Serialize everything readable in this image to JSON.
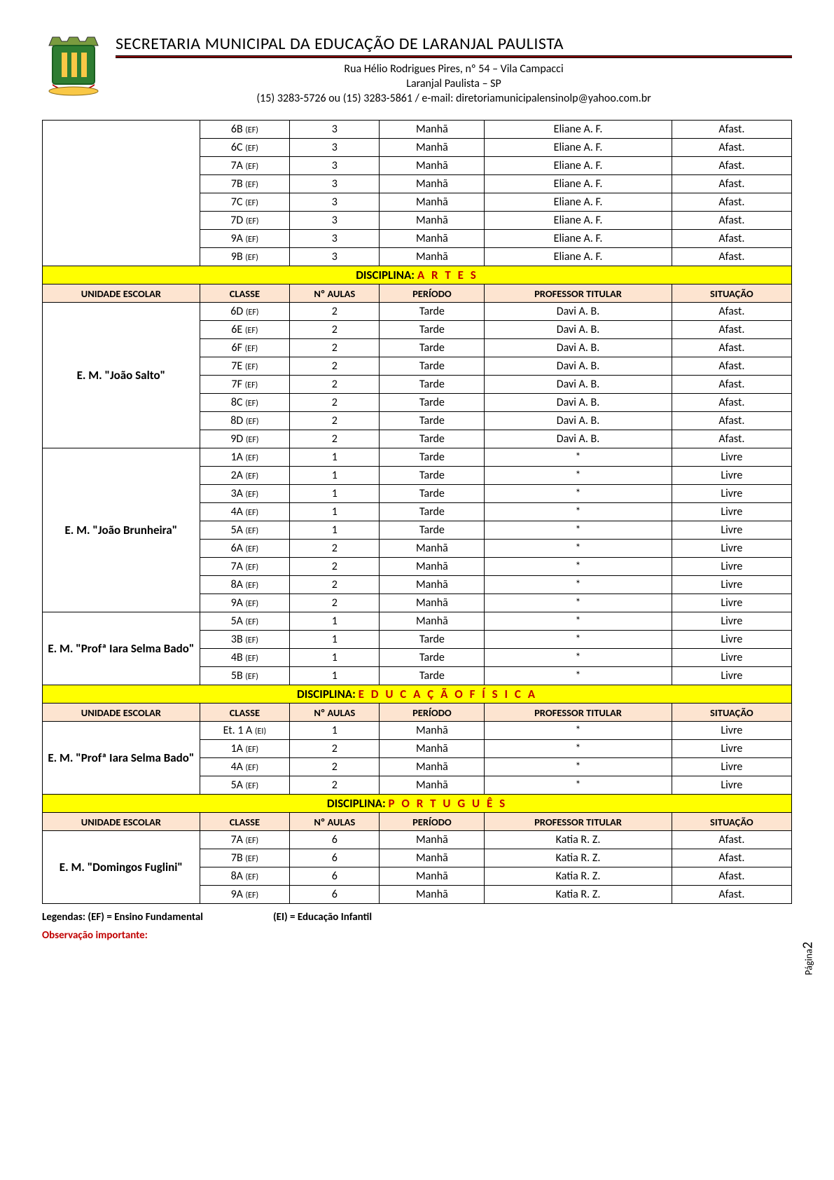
{
  "header": {
    "title": "SECRETARIA MUNICIPAL DA EDUCAÇÃO DE LARANJAL PAULISTA",
    "addr1": "Rua Hélio Rodrigues Pires, nº 54 – Vila Campacci",
    "addr2": "Laranjal Paulista – SP",
    "addr3": "(15) 3283-5726 ou (15) 3283-5861 / e-mail: diretoriamunicipalensinolp@yahoo.com.br"
  },
  "columns": {
    "unit": "UNIDADE ESCOLAR",
    "class": "CLASSE",
    "aulas": "Nº AULAS",
    "periodo": "PERÍODO",
    "prof": "PROFESSOR TITULAR",
    "sit": "SITUAÇÃO"
  },
  "disc_label": "DISCIPLINA:",
  "sections": [
    {
      "discipline": null,
      "groups": [
        {
          "unit": "",
          "rows": [
            {
              "cl": "6B",
              "lvl": "(EF)",
              "a": "3",
              "p": "Manhã",
              "prof": "Eliane A. F.",
              "s": "Afast."
            },
            {
              "cl": "6C",
              "lvl": "(EF)",
              "a": "3",
              "p": "Manhã",
              "prof": "Eliane A. F.",
              "s": "Afast."
            },
            {
              "cl": "7A",
              "lvl": "(EF)",
              "a": "3",
              "p": "Manhã",
              "prof": "Eliane A. F.",
              "s": "Afast."
            },
            {
              "cl": "7B",
              "lvl": "(EF)",
              "a": "3",
              "p": "Manhã",
              "prof": "Eliane A. F.",
              "s": "Afast."
            },
            {
              "cl": "7C",
              "lvl": "(EF)",
              "a": "3",
              "p": "Manhã",
              "prof": "Eliane A. F.",
              "s": "Afast."
            },
            {
              "cl": "7D",
              "lvl": "(EF)",
              "a": "3",
              "p": "Manhã",
              "prof": "Eliane A. F.",
              "s": "Afast."
            },
            {
              "cl": "9A",
              "lvl": "(EF)",
              "a": "3",
              "p": "Manhã",
              "prof": "Eliane A. F.",
              "s": "Afast."
            },
            {
              "cl": "9B",
              "lvl": "(EF)",
              "a": "3",
              "p": "Manhã",
              "prof": "Eliane A. F.",
              "s": "Afast."
            }
          ]
        }
      ]
    },
    {
      "discipline": "A R T E S",
      "groups": [
        {
          "unit": "E. M. \"João Salto\"",
          "rows": [
            {
              "cl": "6D",
              "lvl": "(EF)",
              "a": "2",
              "p": "Tarde",
              "prof": "Davi A. B.",
              "s": "Afast."
            },
            {
              "cl": "6E",
              "lvl": "(EF)",
              "a": "2",
              "p": "Tarde",
              "prof": "Davi A. B.",
              "s": "Afast."
            },
            {
              "cl": "6F",
              "lvl": "(EF)",
              "a": "2",
              "p": "Tarde",
              "prof": "Davi A. B.",
              "s": "Afast."
            },
            {
              "cl": "7E",
              "lvl": "(EF)",
              "a": "2",
              "p": "Tarde",
              "prof": "Davi A. B.",
              "s": "Afast."
            },
            {
              "cl": "7F",
              "lvl": "(EF)",
              "a": "2",
              "p": "Tarde",
              "prof": "Davi A. B.",
              "s": "Afast."
            },
            {
              "cl": "8C",
              "lvl": "(EF)",
              "a": "2",
              "p": "Tarde",
              "prof": "Davi A. B.",
              "s": "Afast."
            },
            {
              "cl": "8D",
              "lvl": "(EF)",
              "a": "2",
              "p": "Tarde",
              "prof": "Davi A. B.",
              "s": "Afast."
            },
            {
              "cl": "9D",
              "lvl": "(EF)",
              "a": "2",
              "p": "Tarde",
              "prof": "Davi A. B.",
              "s": "Afast."
            }
          ]
        },
        {
          "unit": "E. M. \"João Brunheira\"",
          "rows": [
            {
              "cl": "1A",
              "lvl": "(EF)",
              "a": "1",
              "p": "Tarde",
              "prof": "*",
              "s": "Livre"
            },
            {
              "cl": "2A",
              "lvl": "(EF)",
              "a": "1",
              "p": "Tarde",
              "prof": "*",
              "s": "Livre"
            },
            {
              "cl": "3A",
              "lvl": "(EF)",
              "a": "1",
              "p": "Tarde",
              "prof": "*",
              "s": "Livre"
            },
            {
              "cl": "4A",
              "lvl": "(EF)",
              "a": "1",
              "p": "Tarde",
              "prof": "*",
              "s": "Livre"
            },
            {
              "cl": "5A",
              "lvl": "(EF)",
              "a": "1",
              "p": "Tarde",
              "prof": "*",
              "s": "Livre"
            },
            {
              "cl": "6A",
              "lvl": "(EF)",
              "a": "2",
              "p": "Manhã",
              "prof": "*",
              "s": "Livre"
            },
            {
              "cl": "7A",
              "lvl": "(EF)",
              "a": "2",
              "p": "Manhã",
              "prof": "*",
              "s": "Livre"
            },
            {
              "cl": "8A",
              "lvl": "(EF)",
              "a": "2",
              "p": "Manhã",
              "prof": "*",
              "s": "Livre"
            },
            {
              "cl": "9A",
              "lvl": "(EF)",
              "a": "2",
              "p": "Manhã",
              "prof": "*",
              "s": "Livre"
            }
          ]
        },
        {
          "unit": "E. M. \"Profª Iara Selma Bado\"",
          "rows": [
            {
              "cl": "5A",
              "lvl": "(EF)",
              "a": "1",
              "p": "Manhã",
              "prof": "*",
              "s": "Livre"
            },
            {
              "cl": "3B",
              "lvl": "(EF)",
              "a": "1",
              "p": "Tarde",
              "prof": "*",
              "s": "Livre"
            },
            {
              "cl": "4B",
              "lvl": "(EF)",
              "a": "1",
              "p": "Tarde",
              "prof": "*",
              "s": "Livre"
            },
            {
              "cl": "5B",
              "lvl": "(EF)",
              "a": "1",
              "p": "Tarde",
              "prof": "*",
              "s": "Livre"
            }
          ]
        }
      ]
    },
    {
      "discipline": "E D U C A Ç Ã O     F Í S I C A",
      "groups": [
        {
          "unit": "E. M. \"Profª Iara Selma Bado\"",
          "rows": [
            {
              "cl": "Et. 1 A",
              "lvl": "(EI)",
              "a": "1",
              "p": "Manhã",
              "prof": "*",
              "s": "Livre"
            },
            {
              "cl": "1A",
              "lvl": "(EF)",
              "a": "2",
              "p": "Manhã",
              "prof": "*",
              "s": "Livre"
            },
            {
              "cl": "4A",
              "lvl": "(EF)",
              "a": "2",
              "p": "Manhã",
              "prof": "*",
              "s": "Livre"
            },
            {
              "cl": "5A",
              "lvl": "(EF)",
              "a": "2",
              "p": "Manhã",
              "prof": "*",
              "s": "Livre"
            }
          ]
        }
      ]
    },
    {
      "discipline": "P O R T U G U Ê S",
      "groups": [
        {
          "unit": "E. M. \"Domingos Fuglini\"",
          "rows": [
            {
              "cl": "7A",
              "lvl": "(EF)",
              "a": "6",
              "p": "Manhã",
              "prof": "Katia R. Z.",
              "s": "Afast."
            },
            {
              "cl": "7B",
              "lvl": "(EF)",
              "a": "6",
              "p": "Manhã",
              "prof": "Katia R. Z.",
              "s": "Afast."
            },
            {
              "cl": "8A",
              "lvl": "(EF)",
              "a": "6",
              "p": "Manhã",
              "prof": "Katia R. Z.",
              "s": "Afast."
            },
            {
              "cl": "9A",
              "lvl": "(EF)",
              "a": "6",
              "p": "Manhã",
              "prof": "Katia R. Z.",
              "s": "Afast."
            }
          ]
        }
      ]
    }
  ],
  "footer": {
    "leg1": "Legendas: (EF) = Ensino Fundamental",
    "leg2": "(EI) = Educação Infantil",
    "obs": "Observação importante:",
    "page_label": "Página",
    "page_num": "2"
  },
  "colors": {
    "disc_bg": "#ffff00",
    "disc_name": "#c00000",
    "hdr_bg": "#fde4d0",
    "rule": "#8b0000"
  }
}
